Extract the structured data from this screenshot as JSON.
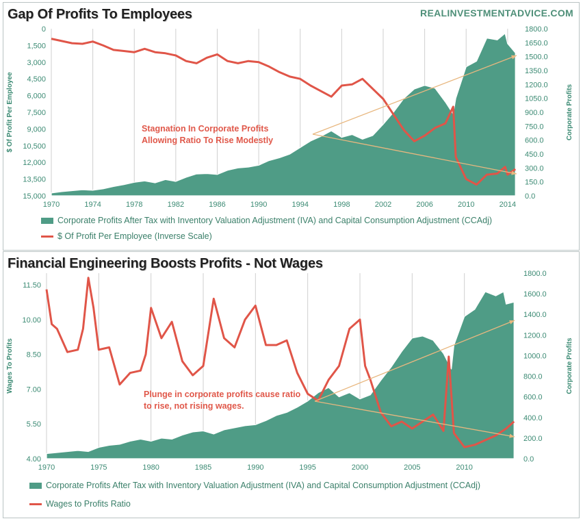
{
  "site": "REALINVESTMENTADVICE.COM",
  "colors": {
    "area": "#4f9c86",
    "line": "#e05548",
    "arrow": "#e8b77f",
    "grid": "#cfcfcf",
    "tick": "#3b8a73"
  },
  "chart_data": [
    {
      "type": "line",
      "title": "Gap Of Profits To Employees",
      "xlabel": "",
      "ylabel_left": "$ Of Profit Per Employee",
      "ylabel_right": "Corporate Profits",
      "x_ticks": [
        "1970",
        "1974",
        "1978",
        "1982",
        "1986",
        "1990",
        "1994",
        "1998",
        "2002",
        "2006",
        "2010",
        "2014"
      ],
      "y_left_ticks": [
        "0",
        "1,500",
        "3,000",
        "4,500",
        "6,000",
        "7,500",
        "9,000",
        "10,500",
        "12,000",
        "13,500",
        "15,000"
      ],
      "y_right_ticks": [
        "0.0",
        "150.0",
        "300.0",
        "450.0",
        "600.0",
        "750.0",
        "900.0",
        "1050.0",
        "1200.0",
        "1350.0",
        "1500.0",
        "1650.0",
        "1800.0"
      ],
      "x_range": [
        1970,
        2015
      ],
      "y_left_range": [
        0,
        15000
      ],
      "y_left_inverted": true,
      "y_right_range": [
        0,
        1800
      ],
      "grid": true,
      "legend_position": "bottom",
      "annotation": "Stagnation In Corporate Profits\nAllowing Ratio To Rise Modestly",
      "series": [
        {
          "name": "Corporate Profits After Tax with Inventory Valuation Adjustment (IVA) and Capital Consumption Adjustment (CCAdj)",
          "axis": "right",
          "kind": "area",
          "x": [
            1970,
            1971,
            1972,
            1973,
            1974,
            1975,
            1976,
            1977,
            1978,
            1979,
            1980,
            1981,
            1982,
            1983,
            1984,
            1985,
            1986,
            1987,
            1988,
            1989,
            1990,
            1991,
            1992,
            1993,
            1994,
            1995,
            1996,
            1997,
            1998,
            1999,
            2000,
            2001,
            2002,
            2003,
            2004,
            2005,
            2006,
            2007,
            2008,
            2008.75,
            2009,
            2010,
            2011,
            2012,
            2013,
            2013.75,
            2014,
            2014.75
          ],
          "values": [
            30,
            45,
            55,
            65,
            60,
            75,
            100,
            120,
            145,
            160,
            140,
            175,
            155,
            200,
            235,
            240,
            230,
            275,
            300,
            310,
            330,
            380,
            410,
            450,
            520,
            590,
            640,
            700,
            630,
            660,
            610,
            650,
            770,
            900,
            1050,
            1150,
            1190,
            1160,
            1010,
            880,
            1050,
            1390,
            1450,
            1700,
            1680,
            1750,
            1640,
            1540
          ]
        },
        {
          "name": "$ Of Profit Per Employee (Inverse Scale)",
          "axis": "left",
          "kind": "line",
          "x": [
            1970,
            1971,
            1972,
            1973,
            1974,
            1975,
            1976,
            1977,
            1978,
            1979,
            1980,
            1981,
            1982,
            1983,
            1984,
            1985,
            1986,
            1987,
            1988,
            1989,
            1990,
            1991,
            1992,
            1993,
            1994,
            1995,
            1996,
            1997,
            1998,
            1999,
            2000,
            2001,
            2002,
            2003,
            2004,
            2005,
            2006,
            2007,
            2008,
            2008.75,
            2009,
            2010,
            2011,
            2012,
            2013,
            2013.75,
            2014,
            2014.75
          ],
          "values": [
            900,
            1100,
            1300,
            1350,
            1150,
            1500,
            1900,
            2000,
            2100,
            1800,
            2100,
            2200,
            2400,
            2900,
            3100,
            2600,
            2300,
            2900,
            3100,
            2900,
            3000,
            3400,
            3900,
            4300,
            4500,
            5100,
            5600,
            6100,
            5100,
            5000,
            4500,
            5400,
            6300,
            7700,
            9100,
            10100,
            9600,
            8900,
            8500,
            7000,
            11500,
            13500,
            14000,
            13100,
            13000,
            12400,
            13100,
            12600
          ]
        }
      ]
    },
    {
      "type": "line",
      "title": "Financial Engineering Boosts Profits - Not Wages",
      "xlabel": "",
      "ylabel_left": "Wages To Profits",
      "ylabel_right": "Corporate Profits",
      "x_ticks": [
        "1970",
        "1975",
        "1980",
        "1985",
        "1990",
        "1995",
        "2000",
        "2005",
        "2010"
      ],
      "y_left_ticks": [
        "4.00",
        "5.50",
        "7.00",
        "8.50",
        "10.00",
        "11.50"
      ],
      "y_right_ticks": [
        "0.0",
        "200.0",
        "400.0",
        "600.0",
        "800.0",
        "1000.0",
        "1200.0",
        "1400.0",
        "1600.0",
        "1800.0"
      ],
      "x_range": [
        1970,
        2015
      ],
      "y_left_range": [
        4.0,
        12.0
      ],
      "y_right_range": [
        0,
        1800
      ],
      "grid": true,
      "legend_position": "bottom",
      "annotation": "Plunge in corporate profits cause ratio\nto rise, not rising wages.",
      "series": [
        {
          "name": "Corporate Profits After Tax with Inventory Valuation Adjustment (IVA) and Capital Consumption Adjustment (CCAdj)",
          "axis": "right",
          "kind": "area",
          "x": [
            1970,
            1971,
            1972,
            1973,
            1974,
            1975,
            1976,
            1977,
            1978,
            1979,
            1980,
            1981,
            1982,
            1983,
            1984,
            1985,
            1986,
            1987,
            1988,
            1989,
            1990,
            1991,
            1992,
            1993,
            1994,
            1995,
            1996,
            1997,
            1998,
            1999,
            2000,
            2001,
            2002,
            2003,
            2004,
            2005,
            2006,
            2007,
            2008,
            2008.75,
            2009,
            2010,
            2011,
            2012,
            2013,
            2013.75,
            2014,
            2014.75
          ],
          "values": [
            50,
            60,
            70,
            80,
            70,
            110,
            130,
            140,
            170,
            190,
            170,
            200,
            190,
            230,
            260,
            270,
            240,
            280,
            300,
            320,
            330,
            370,
            420,
            450,
            500,
            560,
            640,
            690,
            600,
            640,
            580,
            620,
            760,
            890,
            1040,
            1170,
            1190,
            1150,
            1020,
            870,
            1100,
            1380,
            1450,
            1620,
            1580,
            1620,
            1500,
            1520
          ]
        },
        {
          "name": "Wages to Profits Ratio",
          "axis": "left",
          "kind": "line",
          "x": [
            1970,
            1970.5,
            1971,
            1972,
            1973,
            1973.5,
            1974,
            1974.5,
            1975,
            1976,
            1977,
            1978,
            1979,
            1979.5,
            1980,
            1981,
            1982,
            1983,
            1984,
            1985,
            1986,
            1987,
            1988,
            1989,
            1990,
            1991,
            1992,
            1993,
            1994,
            1995,
            1996,
            1997,
            1998,
            1999,
            2000,
            2000.5,
            2001,
            2002,
            2003,
            2004,
            2005,
            2006,
            2007,
            2008,
            2008.5,
            2009,
            2010,
            2011,
            2012,
            2013,
            2014,
            2014.75
          ],
          "values": [
            11.3,
            9.8,
            9.6,
            8.6,
            8.7,
            9.6,
            11.8,
            10.5,
            8.7,
            8.8,
            7.2,
            7.7,
            7.8,
            8.5,
            10.5,
            9.2,
            9.9,
            8.2,
            7.6,
            8.0,
            10.9,
            9.2,
            8.8,
            10.0,
            10.6,
            8.9,
            8.9,
            9.1,
            7.7,
            6.8,
            6.5,
            7.4,
            8.0,
            9.6,
            10.0,
            8.0,
            7.4,
            6.0,
            5.4,
            5.6,
            5.3,
            5.6,
            5.9,
            5.2,
            8.4,
            5.1,
            4.5,
            4.6,
            4.8,
            5.0,
            5.3,
            5.6
          ]
        }
      ]
    }
  ],
  "legend": {
    "area_label": "Corporate Profits After Tax with Inventory Valuation Adjustment (IVA) and Capital Consumption Adjustment (CCAdj)",
    "line1_label": "$ Of Profit Per Employee (Inverse Scale)",
    "line2_label": "Wages to Profits Ratio"
  }
}
